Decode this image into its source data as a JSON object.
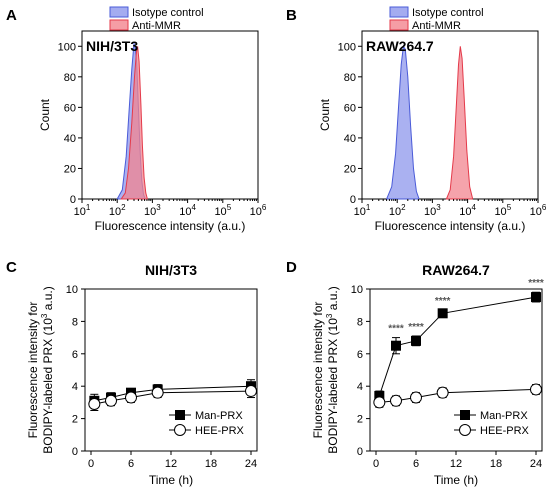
{
  "chart_data": [
    {
      "panel": "A",
      "type": "area",
      "title": "NIH/3T3",
      "xlabel": "Fluorescence intensity (a.u.)",
      "ylabel": "Count",
      "xscale": "log",
      "xlim": [
        10,
        1000000
      ],
      "ylim": [
        0,
        110
      ],
      "xticks": [
        "10",
        "10",
        "10",
        "10",
        "10",
        "10"
      ],
      "xtick_exp": [
        "1",
        "2",
        "3",
        "4",
        "5",
        "6"
      ],
      "yticks": [
        "0",
        "20",
        "40",
        "60",
        "80",
        "100"
      ],
      "legend_position": "top",
      "series": [
        {
          "name": "Isotype control",
          "color": "#4a5bd8",
          "fill": "#8d97ec",
          "x": [
            100,
            140,
            180,
            220,
            260,
            300,
            330,
            360,
            400,
            450,
            500,
            560,
            630
          ],
          "y": [
            0,
            6,
            28,
            60,
            85,
            102,
            98,
            88,
            60,
            30,
            12,
            3,
            0
          ]
        },
        {
          "name": "Anti-MMR",
          "color": "#e43a4a",
          "fill": "#f2848f",
          "x": [
            130,
            170,
            210,
            260,
            310,
            350,
            380,
            420,
            470,
            520,
            580,
            650,
            720
          ],
          "y": [
            0,
            4,
            20,
            50,
            80,
            96,
            100,
            90,
            62,
            35,
            14,
            4,
            0
          ]
        }
      ]
    },
    {
      "panel": "B",
      "type": "area",
      "title": "RAW264.7",
      "xlabel": "Fluorescence intensity (a.u.)",
      "ylabel": "Count",
      "xscale": "log",
      "xlim": [
        10,
        1000000
      ],
      "ylim": [
        0,
        110
      ],
      "xticks": [
        "10",
        "10",
        "10",
        "10",
        "10",
        "10"
      ],
      "xtick_exp": [
        "1",
        "2",
        "3",
        "4",
        "5",
        "6"
      ],
      "yticks": [
        "0",
        "20",
        "40",
        "60",
        "80",
        "100"
      ],
      "legend_position": "top",
      "series": [
        {
          "name": "Isotype control",
          "color": "#4a5bd8",
          "fill": "#8d97ec",
          "x": [
            50,
            70,
            90,
            110,
            130,
            150,
            170,
            200,
            240,
            290,
            350,
            420
          ],
          "y": [
            0,
            8,
            30,
            62,
            88,
            100,
            98,
            80,
            48,
            20,
            5,
            0
          ]
        },
        {
          "name": "Anti-MMR",
          "color": "#e43a4a",
          "fill": "#f2848f",
          "x": [
            2500,
            3200,
            4000,
            4800,
            5500,
            6200,
            7000,
            8000,
            9500,
            11500,
            14000
          ],
          "y": [
            0,
            6,
            28,
            62,
            88,
            100,
            92,
            66,
            32,
            8,
            0
          ]
        }
      ]
    },
    {
      "panel": "C",
      "type": "line",
      "title": "NIH/3T3",
      "xlabel": "Time (h)",
      "ylabel_line1": "Fluorescence intensity for",
      "ylabel_line2": "BODIPY-labeled PRX (10",
      "ylabel_exp": "3",
      "ylabel_end": " a.u.)",
      "xlim": [
        0,
        24
      ],
      "ylim": [
        0,
        10
      ],
      "xticks": [
        "0",
        "6",
        "12",
        "18",
        "24"
      ],
      "yticks": [
        "0",
        "2",
        "4",
        "6",
        "8",
        "10"
      ],
      "legend_position": "bottom-right",
      "series": [
        {
          "name": "Man-PRX",
          "marker": "filled-square",
          "x": [
            0.5,
            3,
            6,
            10,
            24
          ],
          "y": [
            3.1,
            3.3,
            3.6,
            3.8,
            4.0
          ],
          "err": [
            0.4,
            0.3,
            0.2,
            0.3,
            0.4
          ]
        },
        {
          "name": "HEE-PRX",
          "marker": "open-circle",
          "x": [
            0.5,
            3,
            6,
            10,
            24
          ],
          "y": [
            2.9,
            3.1,
            3.3,
            3.6,
            3.7
          ],
          "err": [
            0.4,
            0.3,
            0.3,
            0.3,
            0.4
          ]
        }
      ]
    },
    {
      "panel": "D",
      "type": "line",
      "title": "RAW264.7",
      "xlabel": "Time (h)",
      "ylabel_line1": "Fluorescence intensity for",
      "ylabel_line2": "BODIPY-labeled PRX (10",
      "ylabel_exp": "3",
      "ylabel_end": " a.u.)",
      "xlim": [
        0,
        24
      ],
      "ylim": [
        0,
        10
      ],
      "xticks": [
        "0",
        "6",
        "12",
        "18",
        "24"
      ],
      "yticks": [
        "0",
        "2",
        "4",
        "6",
        "8",
        "10"
      ],
      "legend_position": "bottom-right",
      "annotations": [
        "****",
        "****",
        "****",
        "****"
      ],
      "annotation_x": [
        3,
        6,
        10,
        24
      ],
      "series": [
        {
          "name": "Man-PRX",
          "marker": "filled-square",
          "x": [
            0.5,
            3,
            6,
            10,
            24
          ],
          "y": [
            3.4,
            6.5,
            6.8,
            8.5,
            9.5
          ],
          "err": [
            0.3,
            0.5,
            0.3,
            0.2,
            0.3
          ]
        },
        {
          "name": "HEE-PRX",
          "marker": "open-circle",
          "x": [
            0.5,
            3,
            6,
            10,
            24
          ],
          "y": [
            3.0,
            3.1,
            3.3,
            3.6,
            3.8
          ],
          "err": [
            0.3,
            0.3,
            0.3,
            0.3,
            0.3
          ]
        }
      ]
    }
  ]
}
